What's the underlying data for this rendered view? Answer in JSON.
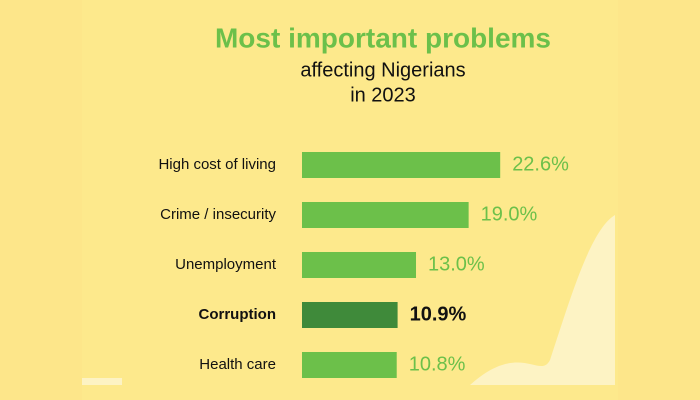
{
  "chart_data": {
    "type": "hbar",
    "title": "Most important problems",
    "subtitle": [
      "affecting Nigerians",
      "in 2023"
    ],
    "categories": [
      "High cost of living",
      "Crime / insecurity",
      "Unemployment",
      "Corruption",
      "Health care"
    ],
    "values": [
      22.6,
      19.0,
      13.0,
      10.9,
      10.8
    ],
    "value_labels": [
      "22.6%",
      "19.0%",
      "13.0%",
      "10.9%",
      "10.8%"
    ],
    "colors": [
      "#6cc04a",
      "#6cc04a",
      "#6cc04a",
      "#3f8a3a",
      "#6cc04a"
    ],
    "emphasis": [
      false,
      false,
      false,
      true,
      false
    ],
    "title_color": "#6cc04a"
  }
}
